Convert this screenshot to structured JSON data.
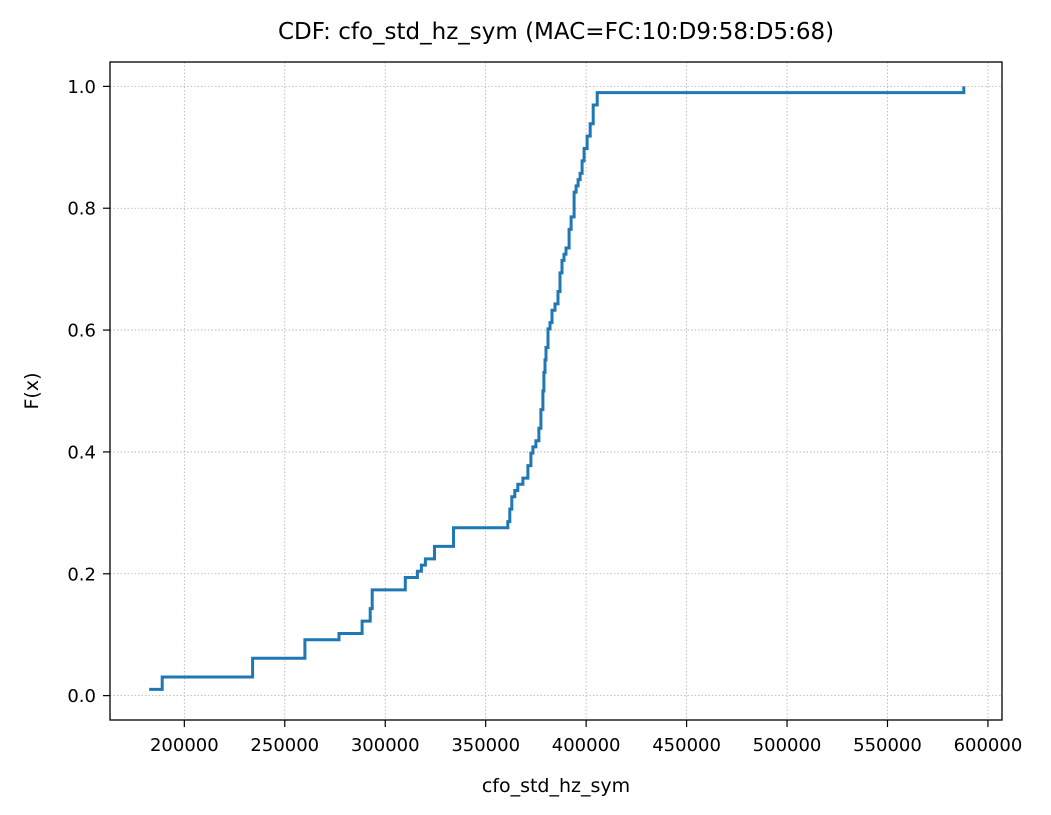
{
  "chart_data": {
    "type": "line",
    "step": true,
    "title": "CDF: cfo_std_hz_sym (MAC=FC:10:D9:58:D5:68)",
    "xlabel": "cfo_std_hz_sym",
    "ylabel": "F(x)",
    "xlim": [
      163000,
      607000
    ],
    "ylim": [
      -0.04,
      1.04
    ],
    "xticks": [
      200000,
      250000,
      300000,
      350000,
      400000,
      450000,
      500000,
      550000,
      600000
    ],
    "xtick_labels": [
      "200000",
      "250000",
      "300000",
      "350000",
      "400000",
      "450000",
      "500000",
      "550000",
      "600000"
    ],
    "yticks": [
      0.0,
      0.2,
      0.4,
      0.6,
      0.8,
      1.0
    ],
    "ytick_labels": [
      "0.0",
      "0.2",
      "0.4",
      "0.6",
      "0.8",
      "1.0"
    ],
    "grid": true,
    "line_color": "#1f77b4",
    "series": [
      {
        "x": [
          182500,
          189000,
          234000,
          260000,
          277000,
          288500,
          292500,
          293500,
          310000,
          316000,
          318000,
          320000,
          324500,
          334000,
          361000,
          362000,
          363000,
          364500,
          366000,
          368500,
          371000,
          372500,
          373500,
          375000,
          376500,
          377500,
          378500,
          379000,
          379500,
          380000,
          381000,
          382000,
          383000,
          384500,
          386000,
          387000,
          388000,
          389000,
          390000,
          391500,
          392500,
          394000,
          395000,
          396000,
          397000,
          398000,
          399000,
          400500,
          402000,
          403500,
          405500,
          407000,
          588000
        ],
        "y": [
          0.0102,
          0.0306,
          0.0612,
          0.0918,
          0.102,
          0.1224,
          0.1429,
          0.1735,
          0.1939,
          0.2041,
          0.2143,
          0.2245,
          0.2449,
          0.2755,
          0.2857,
          0.3061,
          0.3265,
          0.3367,
          0.3469,
          0.3571,
          0.3776,
          0.398,
          0.4082,
          0.4184,
          0.4388,
          0.4694,
          0.5,
          0.5306,
          0.551,
          0.5714,
          0.602,
          0.6122,
          0.6327,
          0.6429,
          0.6633,
          0.6939,
          0.7143,
          0.7245,
          0.7347,
          0.7653,
          0.7857,
          0.8265,
          0.8367,
          0.8469,
          0.8571,
          0.8776,
          0.898,
          0.9184,
          0.9388,
          0.9694,
          0.9898,
          0.9898,
          1.0
        ]
      }
    ]
  }
}
